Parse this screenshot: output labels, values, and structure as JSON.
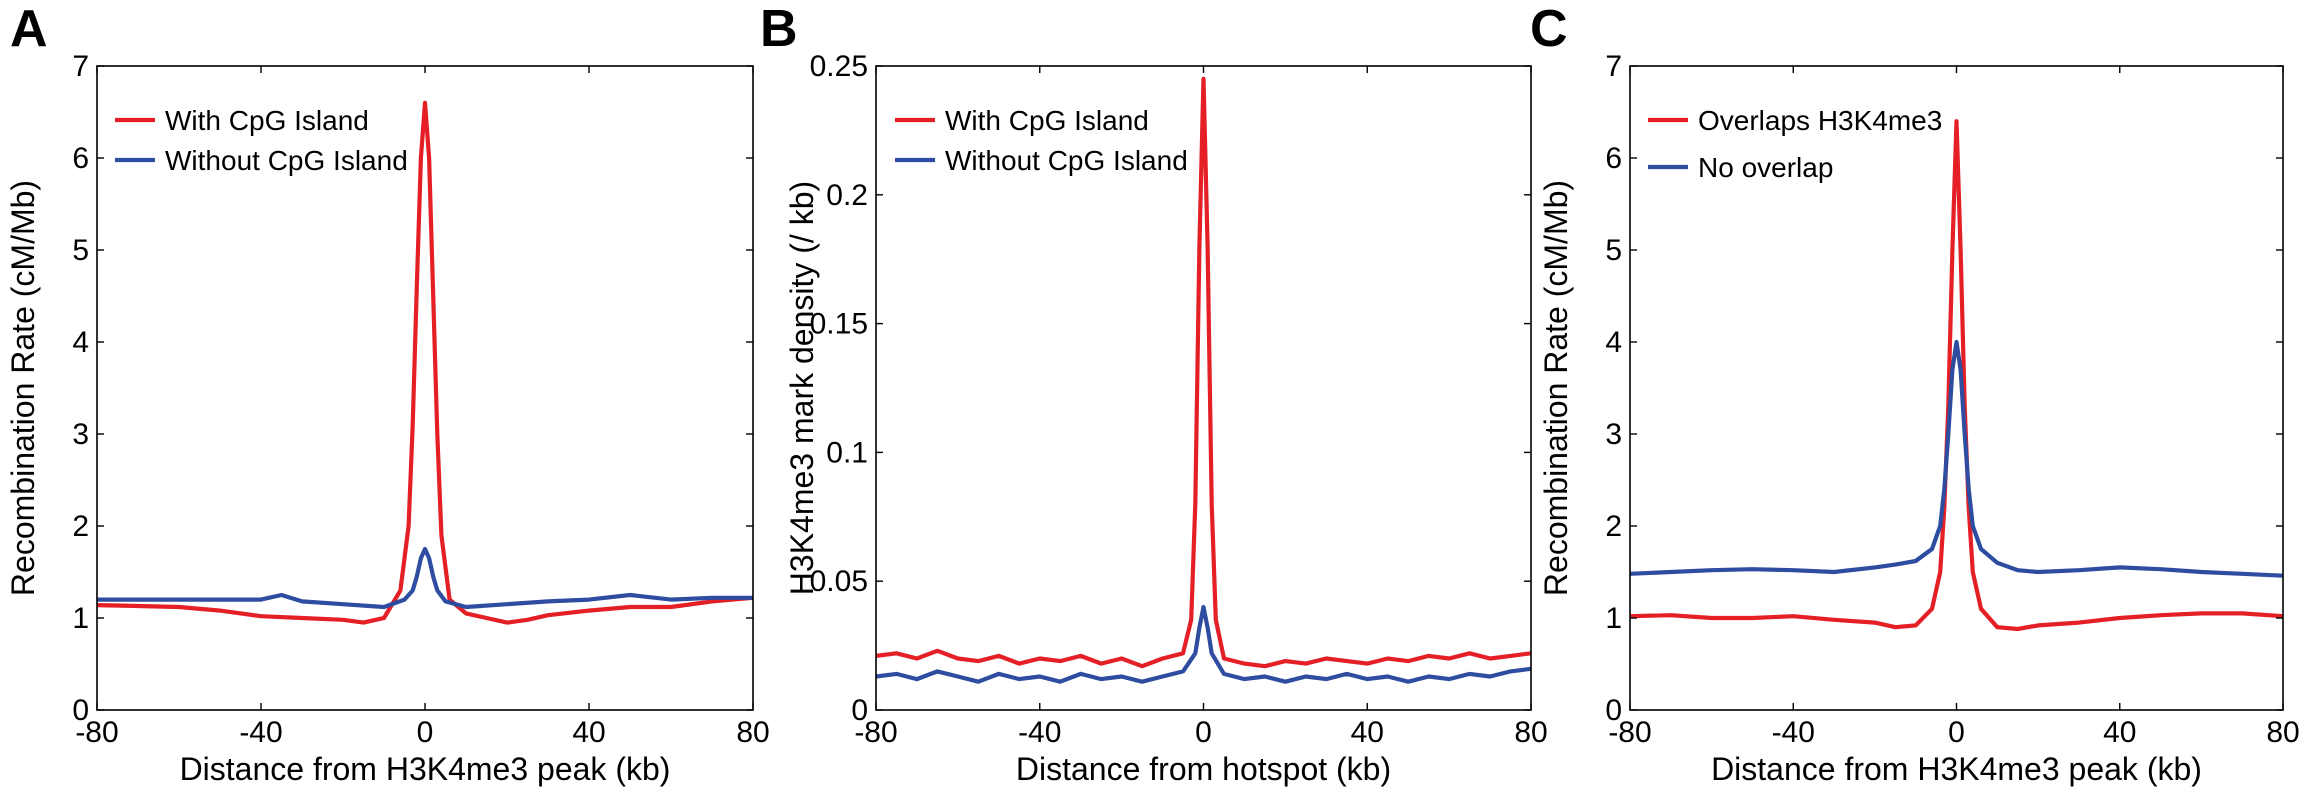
{
  "colors": {
    "red": "#e41f26",
    "blue": "#2e4da0"
  },
  "chart_data": [
    {
      "type": "line",
      "panel_letter": "A",
      "xlabel": "Distance from H3K4me3 peak (kb)",
      "ylabel": "Recombination Rate (cM/Mb)",
      "xlim": [
        -80,
        80
      ],
      "ylim": [
        0,
        7
      ],
      "xticks": [
        "-80",
        "-40",
        "0",
        "40",
        "80"
      ],
      "yticks": [
        "0",
        "1",
        "2",
        "3",
        "4",
        "5",
        "6",
        "7"
      ],
      "legend_position": "top-left",
      "series": [
        {
          "name": "With CpG Island",
          "color": "red",
          "x": [
            -80,
            -70,
            -60,
            -50,
            -40,
            -30,
            -20,
            -15,
            -10,
            -6,
            -4,
            -3,
            -2,
            -1,
            0,
            1,
            2,
            3,
            4,
            6,
            10,
            15,
            20,
            25,
            30,
            40,
            50,
            60,
            70,
            80
          ],
          "y": [
            1.14,
            1.13,
            1.12,
            1.08,
            1.02,
            1.0,
            0.98,
            0.95,
            1.0,
            1.3,
            2.0,
            3.1,
            4.6,
            6.0,
            6.6,
            6.0,
            4.5,
            3.0,
            1.9,
            1.2,
            1.05,
            1.0,
            0.95,
            0.98,
            1.03,
            1.08,
            1.12,
            1.12,
            1.18,
            1.22
          ]
        },
        {
          "name": "Without CpG Island",
          "color": "blue",
          "x": [
            -80,
            -70,
            -60,
            -50,
            -40,
            -35,
            -30,
            -20,
            -10,
            -5,
            -3,
            -2,
            -1,
            0,
            1,
            2,
            3,
            5,
            10,
            20,
            30,
            40,
            50,
            60,
            70,
            80
          ],
          "y": [
            1.2,
            1.2,
            1.2,
            1.2,
            1.2,
            1.25,
            1.18,
            1.15,
            1.12,
            1.2,
            1.3,
            1.45,
            1.65,
            1.75,
            1.65,
            1.45,
            1.3,
            1.18,
            1.12,
            1.15,
            1.18,
            1.2,
            1.25,
            1.2,
            1.22,
            1.22
          ]
        }
      ]
    },
    {
      "type": "line",
      "panel_letter": "B",
      "xlabel": "Distance from hotspot (kb)",
      "ylabel": "H3K4me3 mark density (/ kb)",
      "xlim": [
        -80,
        80
      ],
      "ylim": [
        0,
        0.25
      ],
      "xticks": [
        "-80",
        "-40",
        "0",
        "40",
        "80"
      ],
      "yticks": [
        "0",
        "0.05",
        "0.1",
        "0.15",
        "0.2",
        "0.25"
      ],
      "legend_position": "top-left",
      "series": [
        {
          "name": "With CpG Island",
          "color": "red",
          "x": [
            -80,
            -75,
            -70,
            -65,
            -60,
            -55,
            -50,
            -45,
            -40,
            -35,
            -30,
            -25,
            -20,
            -15,
            -10,
            -5,
            -3,
            -2,
            -1,
            0,
            1,
            2,
            3,
            5,
            10,
            15,
            20,
            25,
            30,
            35,
            40,
            45,
            50,
            55,
            60,
            65,
            70,
            75,
            80
          ],
          "y": [
            0.021,
            0.022,
            0.02,
            0.023,
            0.02,
            0.019,
            0.021,
            0.018,
            0.02,
            0.019,
            0.021,
            0.018,
            0.02,
            0.017,
            0.02,
            0.022,
            0.035,
            0.08,
            0.18,
            0.245,
            0.18,
            0.08,
            0.035,
            0.02,
            0.018,
            0.017,
            0.019,
            0.018,
            0.02,
            0.019,
            0.018,
            0.02,
            0.019,
            0.021,
            0.02,
            0.022,
            0.02,
            0.021,
            0.022
          ]
        },
        {
          "name": "Without CpG Island",
          "color": "blue",
          "x": [
            -80,
            -75,
            -70,
            -65,
            -60,
            -55,
            -50,
            -45,
            -40,
            -35,
            -30,
            -25,
            -20,
            -15,
            -10,
            -5,
            -2,
            -1,
            0,
            1,
            2,
            5,
            10,
            15,
            20,
            25,
            30,
            35,
            40,
            45,
            50,
            55,
            60,
            65,
            70,
            75,
            80
          ],
          "y": [
            0.013,
            0.014,
            0.012,
            0.015,
            0.013,
            0.011,
            0.014,
            0.012,
            0.013,
            0.011,
            0.014,
            0.012,
            0.013,
            0.011,
            0.013,
            0.015,
            0.022,
            0.032,
            0.04,
            0.032,
            0.022,
            0.014,
            0.012,
            0.013,
            0.011,
            0.013,
            0.012,
            0.014,
            0.012,
            0.013,
            0.011,
            0.013,
            0.012,
            0.014,
            0.013,
            0.015,
            0.016
          ]
        }
      ]
    },
    {
      "type": "line",
      "panel_letter": "C",
      "xlabel": "Distance from H3K4me3 peak (kb)",
      "ylabel": "Recombination Rate (cM/Mb)",
      "xlim": [
        -80,
        80
      ],
      "ylim": [
        0,
        7
      ],
      "xticks": [
        "-80",
        "-40",
        "0",
        "40",
        "80"
      ],
      "yticks": [
        "0",
        "1",
        "2",
        "3",
        "4",
        "5",
        "6",
        "7"
      ],
      "legend_position": "top-left",
      "series": [
        {
          "name": "Overlaps H3K4me3",
          "color": "red",
          "x": [
            -80,
            -70,
            -60,
            -50,
            -40,
            -30,
            -20,
            -15,
            -10,
            -6,
            -4,
            -3,
            -2,
            -1,
            0,
            1,
            2,
            3,
            4,
            6,
            10,
            15,
            20,
            30,
            40,
            50,
            60,
            70,
            80
          ],
          "y": [
            1.02,
            1.03,
            1.0,
            1.0,
            1.02,
            0.98,
            0.95,
            0.9,
            0.92,
            1.1,
            1.5,
            2.2,
            3.3,
            5.0,
            6.4,
            5.0,
            3.3,
            2.2,
            1.5,
            1.1,
            0.9,
            0.88,
            0.92,
            0.95,
            1.0,
            1.03,
            1.05,
            1.05,
            1.02
          ]
        },
        {
          "name": "No overlap",
          "color": "blue",
          "x": [
            -80,
            -70,
            -60,
            -50,
            -40,
            -30,
            -20,
            -15,
            -10,
            -6,
            -4,
            -3,
            -2,
            -1,
            0,
            1,
            2,
            3,
            4,
            6,
            10,
            15,
            20,
            30,
            40,
            50,
            60,
            70,
            80
          ],
          "y": [
            1.48,
            1.5,
            1.52,
            1.53,
            1.52,
            1.5,
            1.55,
            1.58,
            1.62,
            1.75,
            2.0,
            2.4,
            3.0,
            3.7,
            4.0,
            3.7,
            3.0,
            2.4,
            2.0,
            1.75,
            1.6,
            1.52,
            1.5,
            1.52,
            1.55,
            1.53,
            1.5,
            1.48,
            1.46
          ]
        }
      ]
    }
  ]
}
